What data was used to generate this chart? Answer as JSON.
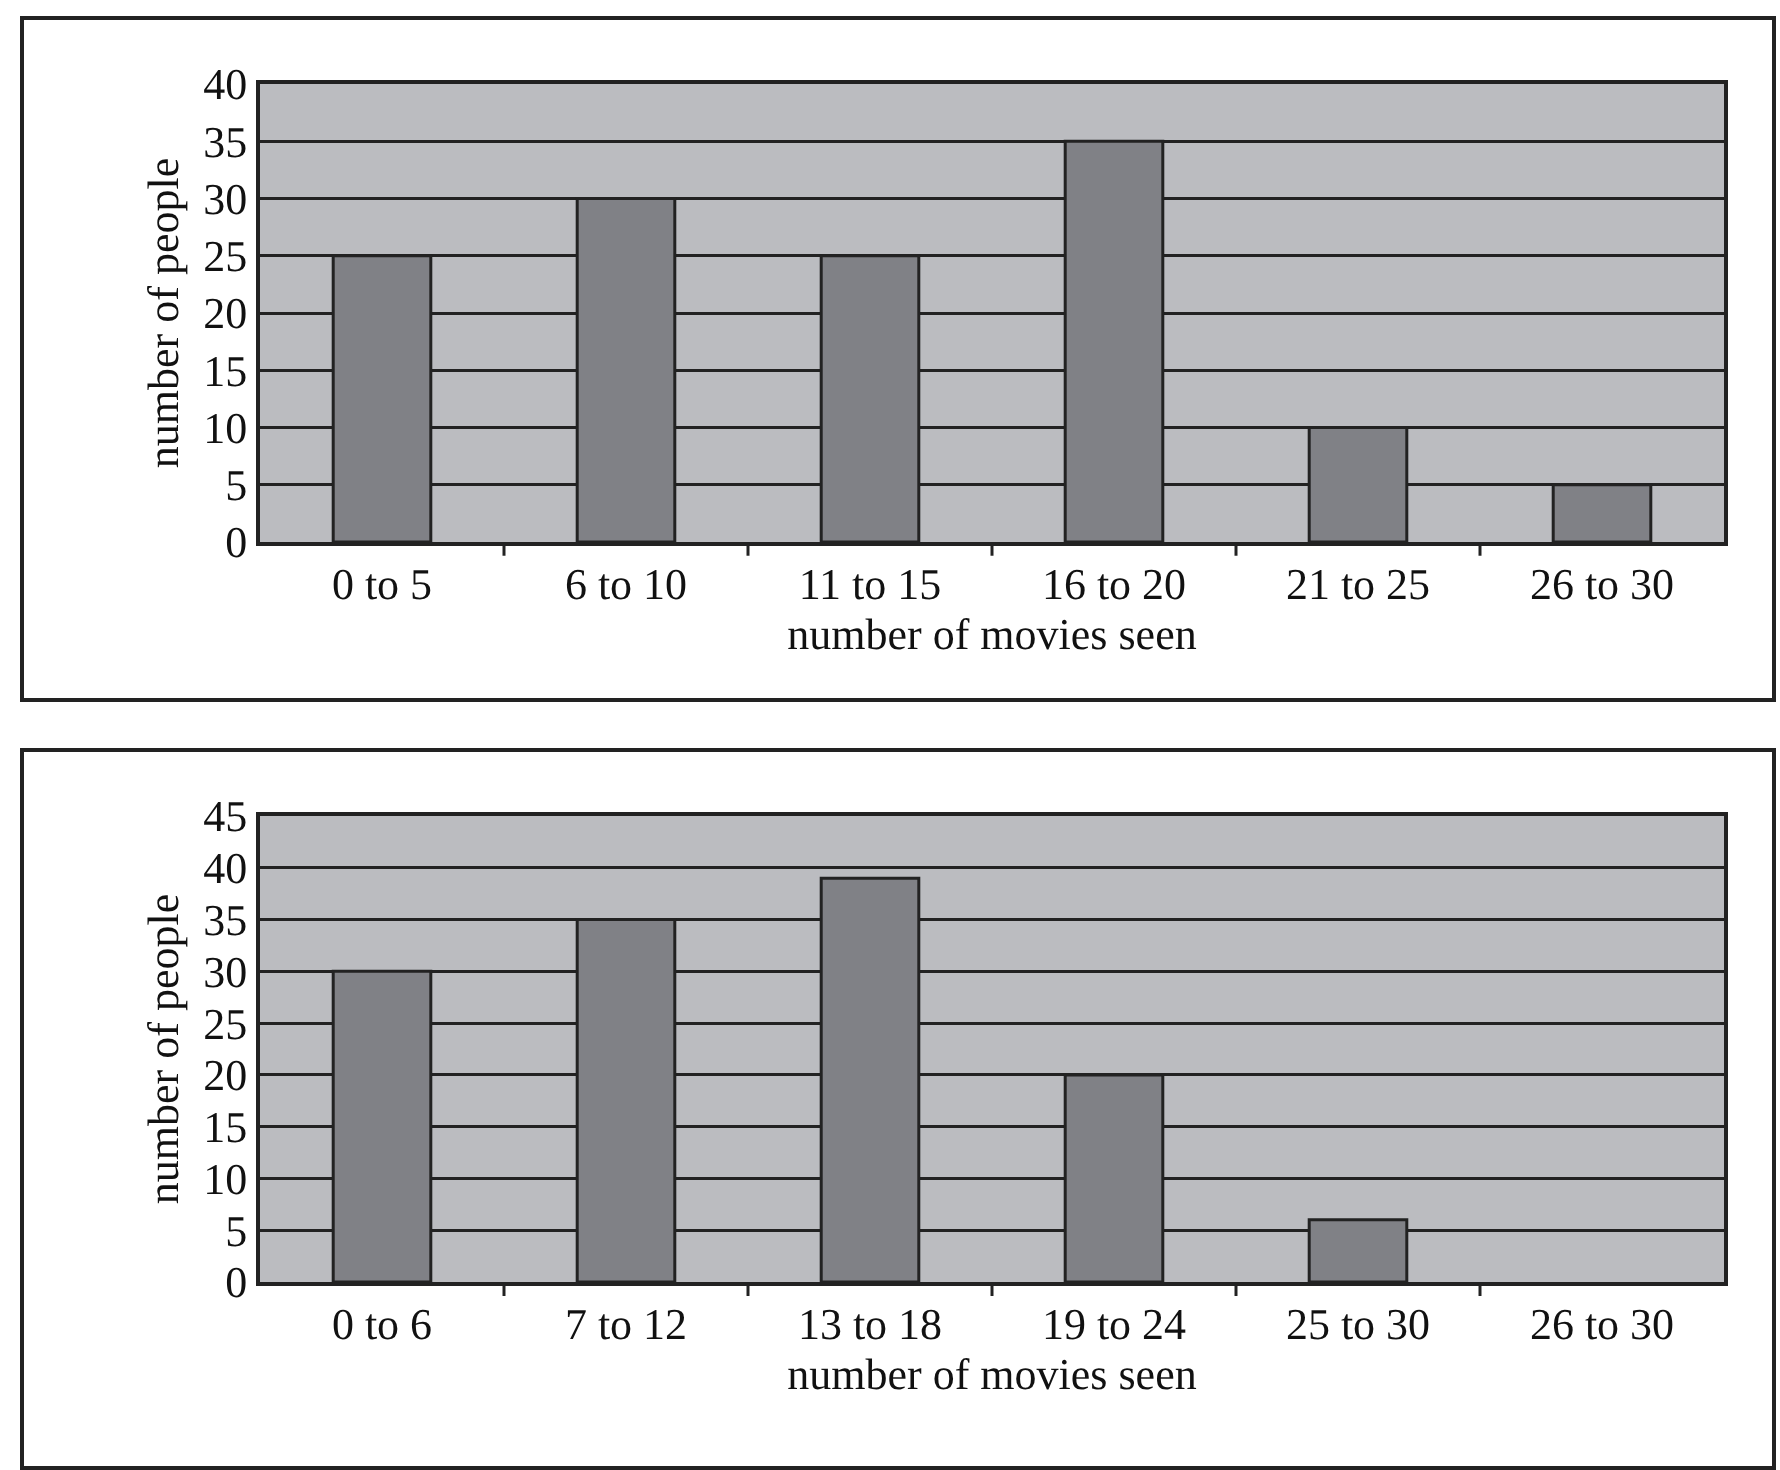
{
  "chart_data": [
    {
      "type": "bar",
      "xlabel": "number of movies seen",
      "ylabel": "number of people",
      "categories": [
        "0 to 5",
        "6 to 10",
        "11 to 15",
        "16 to 20",
        "21 to 25",
        "26 to 30"
      ],
      "values": [
        25,
        30,
        25,
        35,
        10,
        5
      ],
      "color": "#808186",
      "ylim": [
        0,
        40
      ],
      "yticks": [
        0,
        5,
        10,
        15,
        20,
        25,
        30,
        35,
        40
      ],
      "grid": "y",
      "legend": false
    },
    {
      "type": "bar",
      "xlabel": "number of movies seen",
      "ylabel": "number of people",
      "categories": [
        "0 to 6",
        "7 to 12",
        "13 to 18",
        "19 to 24",
        "25 to 30",
        "26 to 30"
      ],
      "values": [
        30,
        35,
        39,
        20,
        6,
        0
      ],
      "color": "#808186",
      "ylim": [
        0,
        45
      ],
      "yticks": [
        0,
        5,
        10,
        15,
        20,
        25,
        30,
        35,
        40,
        45
      ],
      "grid": "y",
      "legend": false
    }
  ]
}
